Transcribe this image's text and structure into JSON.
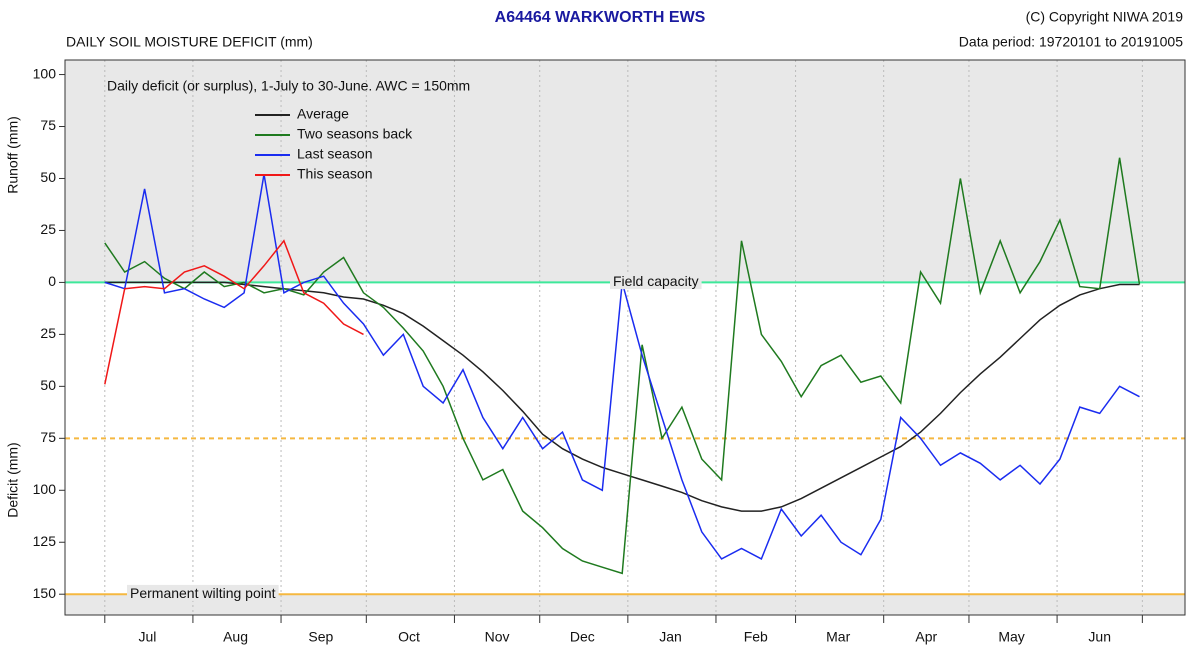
{
  "chart_data": {
    "type": "line",
    "title": "A64464  WARKWORTH EWS",
    "copyright": "(C) Copyright NIWA  2019",
    "data_period": "Data period:  19720101  to  20191005",
    "subtitle": "DAILY SOIL MOISTURE DEFICIT (mm)",
    "annotation": "Daily deficit (or surplus), 1-July to 30-June.  AWC = 150mm",
    "y_label_upper": "Runoff (mm)",
    "y_label_lower": "Deficit (mm)",
    "legend": "upper left",
    "xlim": [
      -14,
      380
    ],
    "ylim": [
      -160,
      107
    ],
    "yticks": [
      100,
      75,
      50,
      25,
      0,
      {
        "value": -25,
        "label": "25"
      },
      {
        "value": -50,
        "label": "50"
      },
      {
        "value": -75,
        "label": "75"
      },
      {
        "value": -100,
        "label": "100"
      },
      {
        "value": -125,
        "label": "125"
      },
      {
        "value": -150,
        "label": "150"
      }
    ],
    "month_bounds": [
      0,
      31,
      62,
      92,
      123,
      153,
      184,
      215,
      243,
      274,
      304,
      335,
      365
    ],
    "months": [
      {
        "value": 15,
        "label": "Jul"
      },
      {
        "value": 46,
        "label": "Aug"
      },
      {
        "value": 76,
        "label": "Sep"
      },
      {
        "value": 107,
        "label": "Oct"
      },
      {
        "value": 138,
        "label": "Nov"
      },
      {
        "value": 168,
        "label": "Dec"
      },
      {
        "value": 199,
        "label": "Jan"
      },
      {
        "value": 229,
        "label": "Feb"
      },
      {
        "value": 258,
        "label": "Mar"
      },
      {
        "value": 289,
        "label": "Apr"
      },
      {
        "value": 319,
        "label": "May"
      },
      {
        "value": 350,
        "label": "Jun"
      }
    ],
    "reference_lines": [
      {
        "value": 0,
        "label": "Field capacity",
        "color": "#3ee89a",
        "dashed": false
      },
      {
        "value": -75,
        "color": "#f5b840",
        "dashed": true
      },
      {
        "value": -150,
        "label": "Permanent wilting point",
        "color": "#f5b840",
        "dashed": false
      }
    ],
    "x": [
      0,
      7,
      14,
      21,
      28,
      35,
      42,
      49,
      56,
      63,
      70,
      77,
      84,
      91,
      98,
      105,
      112,
      119,
      126,
      133,
      140,
      147,
      154,
      161,
      168,
      175,
      182,
      189,
      196,
      203,
      210,
      217,
      224,
      231,
      238,
      245,
      252,
      259,
      266,
      273,
      280,
      287,
      294,
      301,
      308,
      315,
      322,
      329,
      336,
      343,
      350,
      357,
      364
    ],
    "series": [
      {
        "name": "Average",
        "color": "#222222",
        "values": [
          0,
          0,
          0,
          0,
          0,
          0,
          0,
          -1,
          -2,
          -3,
          -4,
          -5,
          -7,
          -8,
          -11,
          -15,
          -21,
          -28,
          -35,
          -43,
          -52,
          -62,
          -73,
          -80,
          -85,
          -89,
          -92,
          -95,
          -98,
          -101,
          -105,
          -108,
          -110,
          -110,
          -108,
          -104,
          -99,
          -94,
          -89,
          -84,
          -79,
          -72,
          -63,
          -53,
          -44,
          -36,
          -27,
          -18,
          -11,
          -6,
          -3,
          -1,
          -1
        ]
      },
      {
        "name": "Two seasons back",
        "color": "#1f7a1f",
        "values": [
          19,
          5,
          10,
          2,
          -3,
          5,
          -2,
          0,
          -5,
          -3,
          -6,
          5,
          12,
          -5,
          -12,
          -22,
          -33,
          -50,
          -75,
          -95,
          -90,
          -110,
          -118,
          -128,
          -134,
          -137,
          -140,
          -30,
          -75,
          -60,
          -85,
          -95,
          20,
          -25,
          -38,
          -55,
          -40,
          -35,
          -48,
          -45,
          -58,
          5,
          -10,
          50,
          -5,
          20,
          -5,
          10,
          30,
          -2,
          -3,
          60,
          -1
        ]
      },
      {
        "name": "Last season",
        "color": "#1a2cf0",
        "values": [
          0,
          -3,
          45,
          -5,
          -3,
          -8,
          -12,
          -5,
          52,
          -5,
          0,
          3,
          -10,
          -20,
          -35,
          -25,
          -50,
          -58,
          -42,
          -65,
          -80,
          -65,
          -80,
          -72,
          -95,
          -100,
          0,
          -35,
          -65,
          -95,
          -120,
          -133,
          -128,
          -133,
          -109,
          -122,
          -112,
          -125,
          -131,
          -114,
          -65,
          -75,
          -88,
          -82,
          -87,
          -95,
          -88,
          -97,
          -85,
          -60,
          -63,
          -50,
          -55
        ]
      },
      {
        "name": "This season",
        "color": "#f01818",
        "values": [
          -49,
          -3,
          -2,
          -3,
          5,
          8,
          3,
          -3,
          8,
          20,
          -5,
          -10,
          -20,
          -25,
          null,
          null,
          null,
          null,
          null,
          null,
          null,
          null,
          null,
          null,
          null,
          null,
          null,
          null,
          null,
          null,
          null,
          null,
          null,
          null,
          null,
          null,
          null,
          null,
          null,
          null,
          null,
          null,
          null,
          null,
          null,
          null,
          null,
          null,
          null,
          null,
          null,
          null,
          null
        ]
      }
    ]
  }
}
